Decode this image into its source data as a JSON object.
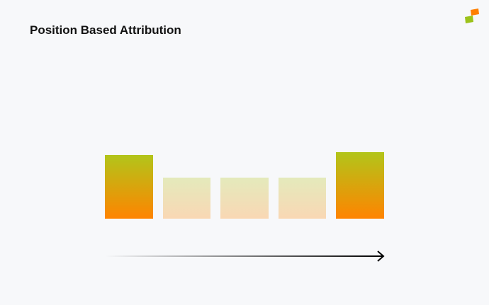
{
  "header": {
    "title": "Position Based Attribution"
  }
}
